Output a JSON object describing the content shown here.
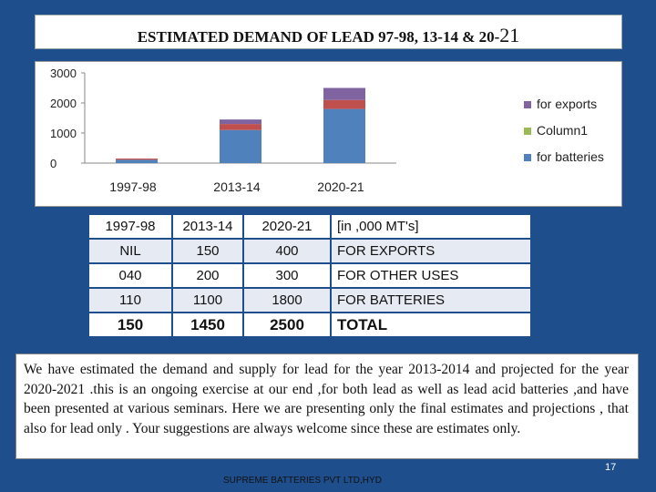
{
  "title": {
    "main": "ESTIMATED DEMAND OF LEAD 97-98, 13-14 & 20-",
    "suffix": "21"
  },
  "chart_data": {
    "type": "bar",
    "stacked": true,
    "title": "",
    "categories": [
      "1997-98",
      "2013-14",
      "2020-21"
    ],
    "series": [
      {
        "name": "for batteries",
        "values": [
          110,
          1100,
          1800
        ],
        "color": "#4f81bd"
      },
      {
        "name": "Column1",
        "values": [
          40,
          200,
          300
        ],
        "color": "#c0504d"
      },
      {
        "name": "for exports",
        "values": [
          0,
          150,
          400
        ],
        "color": "#8064a2"
      }
    ],
    "legend_labels": [
      "for exports",
      "Column1",
      "for batteries"
    ],
    "legend_colors": [
      "#8064a2",
      "#9bbb59",
      "#4f81bd"
    ],
    "y_ticks": [
      "3000",
      "2000",
      "1000",
      "0"
    ],
    "ylim": [
      0,
      3000
    ],
    "xlabel": "",
    "ylabel": "",
    "grid": false,
    "legend_position": "right"
  },
  "table": {
    "header": [
      "1997-98",
      "2013-14",
      "2020-21",
      "[in ,000 MT's]"
    ],
    "rows": [
      [
        "NIL",
        "150",
        "400",
        "FOR EXPORTS"
      ],
      [
        "040",
        "200",
        "300",
        "FOR OTHER USES"
      ],
      [
        "110",
        "1100",
        "1800",
        "FOR BATTERIES"
      ],
      [
        "150",
        "1450",
        "2500",
        "TOTAL"
      ]
    ]
  },
  "description": "We have estimated the demand and supply for lead for the year 2013-2014 and projected for the year 2020-2021 .this is an ongoing exercise  at our end ,for both lead as well as lead acid batteries ,and have been presented at various seminars. Here we are presenting only the final estimates and projections , that also for lead only . Your suggestions are always welcome since these are estimates only.",
  "page_number": "17",
  "footer": "SUPREME BATTERIES PVT LTD,HYD"
}
